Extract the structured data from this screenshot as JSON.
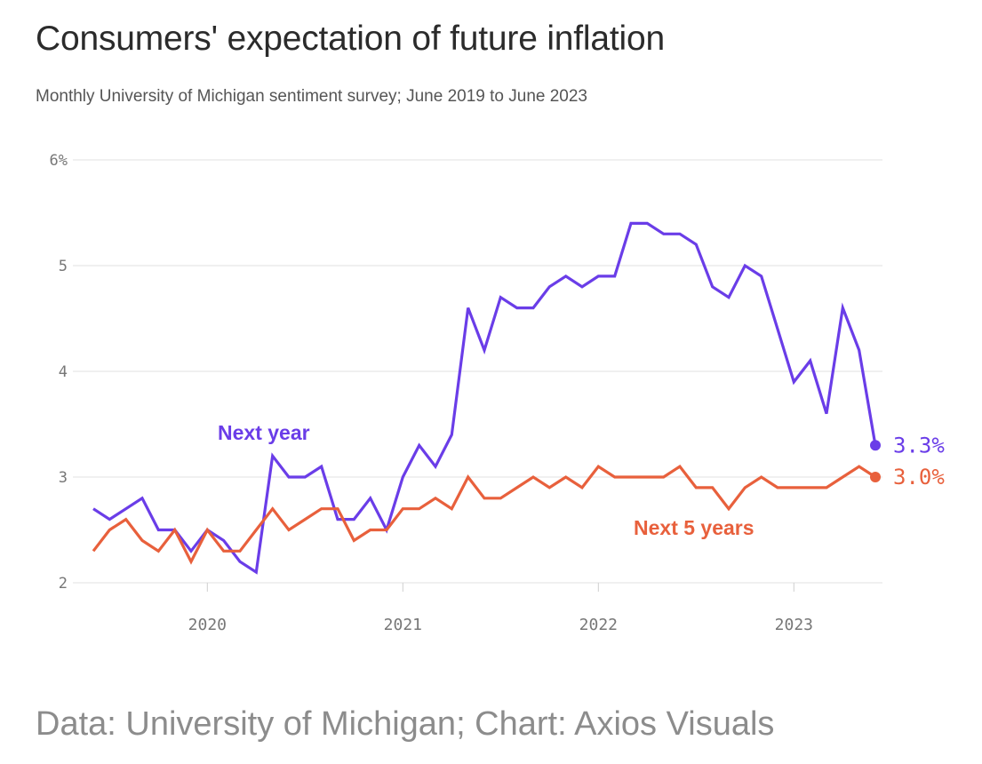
{
  "header": {
    "title": "Consumers' expectation of future inflation",
    "subtitle": "Monthly University of Michigan sentiment survey; June 2019 to June 2023"
  },
  "footer": {
    "source": "Data: University of Michigan; Chart: Axios Visuals"
  },
  "colors": {
    "next_year": "#6a3de8",
    "next_5_years": "#e8603c",
    "grid": "#e2e2e2",
    "tick": "#777777"
  },
  "chart_data": {
    "type": "line",
    "title": "Consumers' expectation of future inflation",
    "xlabel": "",
    "ylabel": "",
    "ylim": [
      2,
      6
    ],
    "xlim": [
      2019.4167,
      2023.4167
    ],
    "y_ticks": [
      2,
      3,
      4,
      5,
      6
    ],
    "y_tick_labels": [
      "2",
      "3",
      "4",
      "5",
      "6%"
    ],
    "x_ticks": [
      2020,
      2021,
      2022,
      2023
    ],
    "x_tick_labels": [
      "2020",
      "2021",
      "2022",
      "2023"
    ],
    "grid": true,
    "x_start": "2019-06",
    "x_step": "monthly",
    "series": [
      {
        "name": "Next year",
        "label": "Next year",
        "end_label": "3.3%",
        "values": [
          2.7,
          2.6,
          2.7,
          2.8,
          2.5,
          2.5,
          2.3,
          2.5,
          2.4,
          2.2,
          2.1,
          3.2,
          3.0,
          3.0,
          3.1,
          2.6,
          2.6,
          2.8,
          2.5,
          3.0,
          3.3,
          3.1,
          3.4,
          4.6,
          4.2,
          4.7,
          4.6,
          4.6,
          4.8,
          4.9,
          4.8,
          4.9,
          4.9,
          5.4,
          5.4,
          5.3,
          5.3,
          5.2,
          4.8,
          4.7,
          5.0,
          4.9,
          4.4,
          3.9,
          4.1,
          3.6,
          4.6,
          4.2,
          3.3
        ]
      },
      {
        "name": "Next 5 years",
        "label": "Next 5 years",
        "end_label": "3.0%",
        "values": [
          2.3,
          2.5,
          2.6,
          2.4,
          2.3,
          2.5,
          2.2,
          2.5,
          2.3,
          2.3,
          2.5,
          2.7,
          2.5,
          2.6,
          2.7,
          2.7,
          2.4,
          2.5,
          2.5,
          2.7,
          2.7,
          2.8,
          2.7,
          3.0,
          2.8,
          2.8,
          2.9,
          3.0,
          2.9,
          3.0,
          2.9,
          3.1,
          3.0,
          3.0,
          3.0,
          3.0,
          3.1,
          2.9,
          2.9,
          2.7,
          2.9,
          3.0,
          2.9,
          2.9,
          2.9,
          2.9,
          3.0,
          3.1,
          3.0
        ]
      }
    ]
  }
}
